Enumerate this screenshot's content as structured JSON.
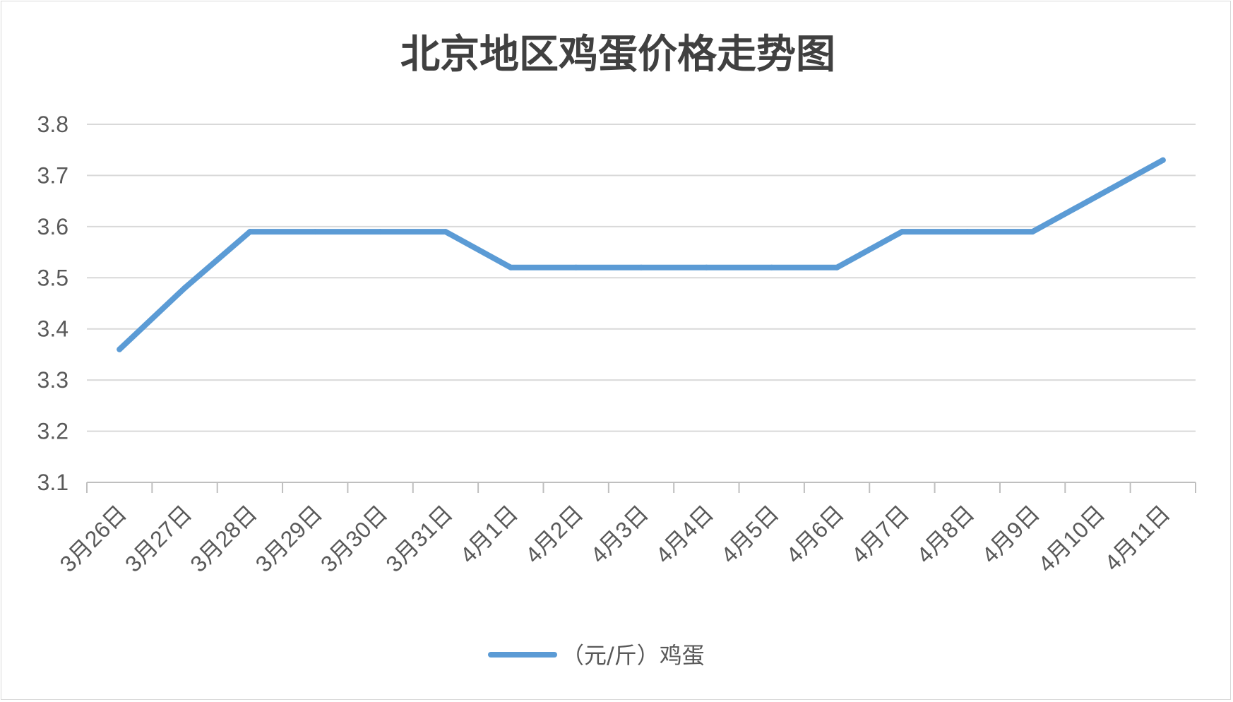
{
  "chart_data": {
    "type": "line",
    "title": "北京地区鸡蛋价格走势图",
    "xlabel": "",
    "ylabel": "",
    "categories": [
      "3月26日",
      "3月27日",
      "3月28日",
      "3月29日",
      "3月30日",
      "3月31日",
      "4月1日",
      "4月2日",
      "4月3日",
      "4月4日",
      "4月5日",
      "4月6日",
      "4月7日",
      "4月8日",
      "4月9日",
      "4月10日",
      "4月11日"
    ],
    "series": [
      {
        "name": "（元/斤）鸡蛋",
        "values": [
          3.36,
          3.48,
          3.59,
          3.59,
          3.59,
          3.59,
          3.52,
          3.52,
          3.52,
          3.52,
          3.52,
          3.52,
          3.59,
          3.59,
          3.59,
          3.66,
          3.73
        ],
        "color": "#5b9bd5"
      }
    ],
    "ylim": [
      3.1,
      3.8
    ],
    "yticks": [
      "3.1",
      "3.2",
      "3.3",
      "3.4",
      "3.5",
      "3.6",
      "3.7",
      "3.8"
    ],
    "grid": true,
    "legend": "bottom"
  },
  "colors": {
    "gridline": "#d9d9d9",
    "axis": "#bfbfbf",
    "text": "#595959",
    "title": "#404040"
  }
}
